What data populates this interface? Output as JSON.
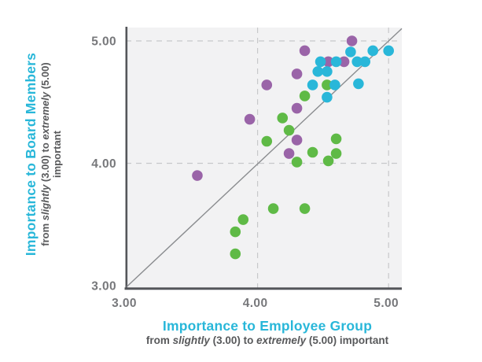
{
  "colors": {
    "accent_cyan": "#29b7d9",
    "plot_bg": "#f2f2f3",
    "grid": "#c7c8ca",
    "axis_line": "#54565a",
    "diagonal_line": "#8a8c8f",
    "tick_text": "#77787b",
    "subtitle_text": "#58595b"
  },
  "chart_data": {
    "type": "scatter",
    "x_axis": {
      "title": "Importance to Employee Group",
      "subtitle_parts": [
        {
          "text": "from ",
          "italic": false
        },
        {
          "text": "slightly",
          "italic": true
        },
        {
          "text": " (3.00) to ",
          "italic": false
        },
        {
          "text": "extremely",
          "italic": true
        },
        {
          "text": " (5.00) important",
          "italic": false
        }
      ],
      "ticks": [
        {
          "label": "3.00",
          "value": 3.0
        },
        {
          "label": "4.00",
          "value": 4.0
        },
        {
          "label": "5.00",
          "value": 5.0
        }
      ],
      "range": [
        3.0,
        5.0
      ],
      "gridlines_at": [
        4.0,
        5.0
      ]
    },
    "y_axis": {
      "title": "Importance to Board Members",
      "subtitle_parts": [
        {
          "text": "from ",
          "italic": false
        },
        {
          "text": "slightly",
          "italic": true
        },
        {
          "text": " (3.00) to ",
          "italic": false
        },
        {
          "text": "extremely",
          "italic": true
        },
        {
          "text": " (5.00) important",
          "italic": false
        }
      ],
      "ticks": [
        {
          "label": "3.00",
          "value": 3.0
        },
        {
          "label": "4.00",
          "value": 4.0
        },
        {
          "label": "5.00",
          "value": 5.0
        }
      ],
      "range": [
        3.0,
        5.0
      ],
      "gridlines_at": [
        4.0,
        5.0
      ]
    },
    "diagonal_reference_line": true,
    "grid_style": "dashed",
    "legend": "none",
    "series": [
      {
        "name": "purple",
        "color": "#9a64a8",
        "points": [
          [
            4.72,
            5.0
          ],
          [
            4.36,
            4.92
          ],
          [
            4.54,
            4.83
          ],
          [
            4.66,
            4.83
          ],
          [
            4.3,
            4.73
          ],
          [
            4.07,
            4.64
          ],
          [
            3.94,
            4.36
          ],
          [
            4.3,
            4.45
          ],
          [
            4.3,
            4.19
          ],
          [
            4.24,
            4.08
          ],
          [
            3.54,
            3.9
          ]
        ]
      },
      {
        "name": "green",
        "color": "#5fba46",
        "points": [
          [
            4.53,
            4.64
          ],
          [
            4.36,
            4.55
          ],
          [
            4.19,
            4.37
          ],
          [
            4.24,
            4.27
          ],
          [
            4.07,
            4.18
          ],
          [
            4.6,
            4.2
          ],
          [
            4.42,
            4.09
          ],
          [
            4.6,
            4.08
          ],
          [
            4.3,
            4.01
          ],
          [
            4.54,
            4.02
          ],
          [
            4.12,
            3.63
          ],
          [
            4.36,
            3.63
          ],
          [
            3.89,
            3.54
          ],
          [
            3.83,
            3.44
          ],
          [
            3.83,
            3.26
          ]
        ]
      },
      {
        "name": "cyan",
        "color": "#29b7d9",
        "points": [
          [
            4.71,
            4.91
          ],
          [
            4.88,
            4.92
          ],
          [
            5.0,
            4.92
          ],
          [
            4.48,
            4.83
          ],
          [
            4.6,
            4.83
          ],
          [
            4.76,
            4.83
          ],
          [
            4.82,
            4.83
          ],
          [
            4.46,
            4.75
          ],
          [
            4.53,
            4.75
          ],
          [
            4.42,
            4.64
          ],
          [
            4.59,
            4.64
          ],
          [
            4.77,
            4.65
          ],
          [
            4.53,
            4.54
          ]
        ]
      }
    ]
  }
}
